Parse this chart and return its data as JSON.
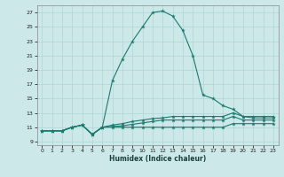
{
  "xlabel": "Humidex (Indice chaleur)",
  "bg_color": "#cce8e8",
  "grid_color": "#aed4d4",
  "line_color": "#1a7a6e",
  "xlim": [
    -0.5,
    23.5
  ],
  "ylim": [
    8.5,
    28.0
  ],
  "xticks": [
    0,
    1,
    2,
    3,
    4,
    5,
    6,
    7,
    8,
    9,
    10,
    11,
    12,
    13,
    14,
    15,
    16,
    17,
    18,
    19,
    20,
    21,
    22,
    23
  ],
  "yticks": [
    9,
    11,
    13,
    15,
    17,
    19,
    21,
    23,
    25,
    27
  ],
  "line1_x": [
    0,
    1,
    2,
    3,
    4,
    5,
    6,
    7,
    8,
    9,
    10,
    11,
    12,
    13,
    14,
    15,
    16,
    17,
    18,
    19,
    20,
    21,
    22,
    23
  ],
  "line1_y": [
    10.5,
    10.5,
    10.5,
    11.0,
    11.3,
    10.0,
    11.0,
    17.5,
    20.5,
    23.0,
    25.0,
    27.0,
    27.2,
    26.5,
    24.5,
    21.0,
    15.5,
    15.0,
    14.0,
    13.5,
    12.5,
    12.5,
    12.5,
    12.5
  ],
  "line2_x": [
    0,
    1,
    2,
    3,
    4,
    5,
    6,
    7,
    8,
    9,
    10,
    11,
    12,
    13,
    14,
    15,
    16,
    17,
    18,
    19,
    20,
    21,
    22,
    23
  ],
  "line2_y": [
    10.5,
    10.5,
    10.5,
    11.0,
    11.3,
    10.0,
    11.0,
    11.3,
    11.5,
    11.8,
    12.0,
    12.2,
    12.3,
    12.5,
    12.5,
    12.5,
    12.5,
    12.5,
    12.5,
    13.0,
    12.5,
    12.3,
    12.3,
    12.3
  ],
  "line3_x": [
    0,
    1,
    2,
    3,
    4,
    5,
    6,
    7,
    8,
    9,
    10,
    11,
    12,
    13,
    14,
    15,
    16,
    17,
    18,
    19,
    20,
    21,
    22,
    23
  ],
  "line3_y": [
    10.5,
    10.5,
    10.5,
    11.0,
    11.3,
    10.0,
    11.0,
    11.1,
    11.2,
    11.4,
    11.6,
    11.8,
    12.0,
    12.0,
    12.0,
    12.0,
    12.0,
    12.0,
    12.0,
    12.5,
    12.0,
    12.0,
    12.0,
    12.0
  ],
  "line4_x": [
    0,
    1,
    2,
    3,
    4,
    5,
    6,
    7,
    8,
    9,
    10,
    11,
    12,
    13,
    14,
    15,
    16,
    17,
    18,
    19,
    20,
    21,
    22,
    23
  ],
  "line4_y": [
    10.5,
    10.5,
    10.5,
    11.0,
    11.3,
    10.0,
    11.0,
    11.0,
    11.0,
    11.0,
    11.0,
    11.0,
    11.0,
    11.0,
    11.0,
    11.0,
    11.0,
    11.0,
    11.0,
    11.5,
    11.5,
    11.5,
    11.5,
    11.5
  ]
}
